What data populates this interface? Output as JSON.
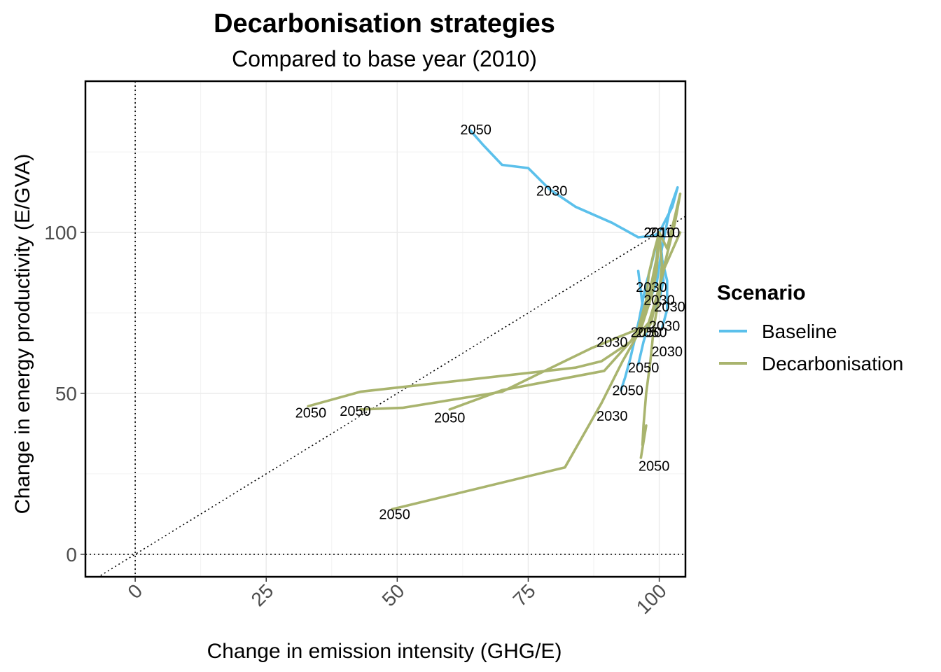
{
  "chart_data": {
    "type": "line",
    "title": "Decarbonisation strategies",
    "subtitle": "Compared to base year (2010)",
    "xlabel": "Change in emission intensity (GHG/E)",
    "ylabel": "Change in energy productivity (E/GVA)",
    "xlim": [
      -9.5,
      105
    ],
    "ylim": [
      -7,
      147
    ],
    "x_ticks": [
      0,
      25,
      50,
      75,
      100
    ],
    "y_ticks": [
      0,
      50,
      100
    ],
    "grid": true,
    "reference_lines": [
      "x = 0 (dotted)",
      "y = 0 (dotted)",
      "y = x (dotted diagonal)"
    ],
    "legend": {
      "title": "Scenario",
      "position": "right",
      "entries": [
        {
          "name": "Baseline",
          "color": "#5BC0EB"
        },
        {
          "name": "Decarbonisation",
          "color": "#A9B46E"
        }
      ]
    },
    "series": [
      {
        "scenario": "Baseline",
        "points": [
          [
            100,
            100
          ],
          [
            99,
            99
          ],
          [
            96,
            98.5
          ],
          [
            91,
            103
          ],
          [
            84,
            108
          ],
          [
            79,
            113.5
          ],
          [
            75,
            120
          ],
          [
            70,
            121
          ],
          [
            66.5,
            127
          ],
          [
            63.8,
            132
          ]
        ],
        "labels": [
          {
            "text": "2010",
            "x": 100,
            "y": 100
          },
          {
            "text": "2030",
            "x": 79.5,
            "y": 113
          },
          {
            "text": "2050",
            "x": 65,
            "y": 132
          }
        ]
      },
      {
        "scenario": "Baseline",
        "points": [
          [
            100,
            100
          ],
          [
            98.5,
            90
          ],
          [
            97.5,
            84
          ],
          [
            97,
            80
          ],
          [
            96.3,
            74
          ],
          [
            95.5,
            68
          ],
          [
            94.5,
            61
          ],
          [
            93.5,
            55
          ],
          [
            92.7,
            51
          ]
        ],
        "labels": [
          {
            "text": "2010",
            "x": 100,
            "y": 100
          },
          {
            "text": "2030",
            "x": 98.5,
            "y": 83
          },
          {
            "text": "2050",
            "x": 94,
            "y": 51
          }
        ]
      },
      {
        "scenario": "Baseline",
        "points": [
          [
            100,
            100
          ],
          [
            100.5,
            93
          ],
          [
            100.8,
            85
          ],
          [
            100,
            79
          ],
          [
            98.5,
            74
          ],
          [
            97,
            66
          ],
          [
            96,
            59
          ]
        ],
        "labels": [
          {
            "text": "2010",
            "x": 100,
            "y": 100
          },
          {
            "text": "2030",
            "x": 100,
            "y": 79
          },
          {
            "text": "2050",
            "x": 97,
            "y": 58
          }
        ]
      },
      {
        "scenario": "Baseline",
        "points": [
          [
            100,
            100
          ],
          [
            102.5,
            108
          ],
          [
            103.5,
            114
          ],
          [
            102,
            107
          ],
          [
            100.5,
            95
          ],
          [
            99.5,
            84
          ],
          [
            97,
            75
          ],
          [
            96,
            88
          ]
        ],
        "labels": [
          {
            "text": "2010",
            "x": 101,
            "y": 100
          }
        ]
      },
      {
        "scenario": "Baseline",
        "points": [
          [
            100,
            100
          ],
          [
            100.5,
            92
          ],
          [
            101.5,
            85
          ],
          [
            101.5,
            76
          ],
          [
            100.5,
            70
          ]
        ],
        "labels": [
          {
            "text": "2030",
            "x": 102,
            "y": 77
          }
        ]
      },
      {
        "scenario": "Decarbonisation",
        "points": [
          [
            100,
            100
          ],
          [
            99,
            94
          ],
          [
            98,
            87
          ],
          [
            97.5,
            79
          ],
          [
            96.5,
            73
          ],
          [
            96,
            70
          ],
          [
            94.5,
            66
          ],
          [
            89,
            60
          ],
          [
            84,
            58
          ],
          [
            43,
            50.5
          ],
          [
            33,
            46
          ]
        ],
        "labels": [
          {
            "text": "2050",
            "x": 33.5,
            "y": 44
          }
        ]
      },
      {
        "scenario": "Decarbonisation",
        "points": [
          [
            100,
            100
          ],
          [
            99.5,
            92
          ],
          [
            98.5,
            84
          ],
          [
            97,
            75
          ],
          [
            96,
            70
          ],
          [
            90,
            66
          ],
          [
            87,
            64
          ],
          [
            70,
            50.5
          ],
          [
            51,
            45.5
          ],
          [
            43,
            45
          ]
        ],
        "labels": [
          {
            "text": "2030",
            "x": 91,
            "y": 66
          },
          {
            "text": "2050",
            "x": 42,
            "y": 44.5
          }
        ]
      },
      {
        "scenario": "Decarbonisation",
        "points": [
          [
            100,
            100
          ],
          [
            99.5,
            88
          ],
          [
            98.5,
            80
          ],
          [
            96.5,
            70
          ],
          [
            95,
            67
          ],
          [
            89.5,
            57
          ],
          [
            70,
            51
          ],
          [
            60,
            45
          ]
        ],
        "labels": [
          {
            "text": "2050",
            "x": 60,
            "y": 42.5
          }
        ]
      },
      {
        "scenario": "Decarbonisation",
        "points": [
          [
            100,
            100
          ],
          [
            99.5,
            90
          ],
          [
            98,
            80
          ],
          [
            96.5,
            70
          ],
          [
            93,
            60
          ],
          [
            89,
            47
          ],
          [
            82,
            27
          ],
          [
            49,
            14
          ]
        ],
        "labels": [
          {
            "text": "2030",
            "x": 91,
            "y": 43
          },
          {
            "text": "2050",
            "x": 49.5,
            "y": 12.5
          }
        ]
      },
      {
        "scenario": "Decarbonisation",
        "points": [
          [
            100,
            100
          ],
          [
            100.5,
            90
          ],
          [
            100,
            80
          ],
          [
            99,
            71
          ],
          [
            98.3,
            60
          ],
          [
            97.5,
            50
          ],
          [
            97,
            40
          ],
          [
            96.8,
            34
          ],
          [
            97.5,
            40
          ],
          [
            96.5,
            30
          ]
        ],
        "labels": [
          {
            "text": "2030",
            "x": 101.5,
            "y": 63
          },
          {
            "text": "2050",
            "x": 99,
            "y": 27.5
          }
        ]
      },
      {
        "scenario": "Decarbonisation",
        "points": [
          [
            100,
            100
          ],
          [
            101.5,
            95
          ],
          [
            103,
            105
          ],
          [
            104,
            112
          ],
          [
            103,
            103
          ],
          [
            101,
            90
          ],
          [
            99.5,
            80
          ],
          [
            98.5,
            72
          ],
          [
            97,
            68
          ]
        ],
        "labels": [
          {
            "text": "2030",
            "x": 101,
            "y": 71
          }
        ]
      },
      {
        "scenario": "Decarbonisation",
        "points": [
          [
            104,
            100
          ],
          [
            101,
            89
          ],
          [
            99.5,
            80
          ],
          [
            98,
            72
          ],
          [
            96,
            68
          ]
        ],
        "labels": [
          {
            "text": "2050",
            "x": 98.5,
            "y": 69
          },
          {
            "text": "2050",
            "x": 97.5,
            "y": 69
          }
        ]
      }
    ]
  }
}
